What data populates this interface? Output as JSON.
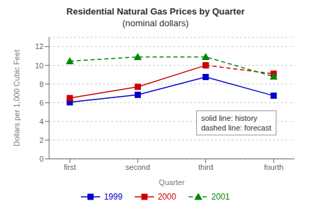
{
  "chart_data": {
    "type": "line",
    "title": "Residential Natural Gas Prices by Quarter",
    "subtitle": "(nominal dollars)",
    "x_label": "Quarter",
    "y_label": "Dollars per 1,000 Cubic Feet",
    "categories": [
      "first",
      "second",
      "third",
      "fourth"
    ],
    "series": [
      {
        "name": "1999",
        "color": "#0000CC",
        "values": [
          6.05,
          6.85,
          8.75,
          6.75
        ],
        "line_style": "solid",
        "marker": "square"
      },
      {
        "name": "2000",
        "color": "#CC0000",
        "values": [
          6.5,
          7.7,
          10.0,
          null
        ],
        "line_style": "solid",
        "marker": "square"
      },
      {
        "color": "#CC0000",
        "values": [
          null,
          null,
          10.0,
          9.1
        ],
        "line_style": "dashed",
        "marker": "square"
      },
      {
        "name": "2001",
        "color": "#008800",
        "values": [
          10.45,
          10.9,
          10.9,
          8.8
        ],
        "line_style": "dashed",
        "marker": "triangle"
      }
    ],
    "ylim": [
      0,
      13
    ],
    "yticks": [
      0,
      2,
      4,
      6,
      8,
      10,
      12
    ],
    "grid": true,
    "annotations": [
      "solid line: history",
      "dashed line: forecast"
    ]
  }
}
